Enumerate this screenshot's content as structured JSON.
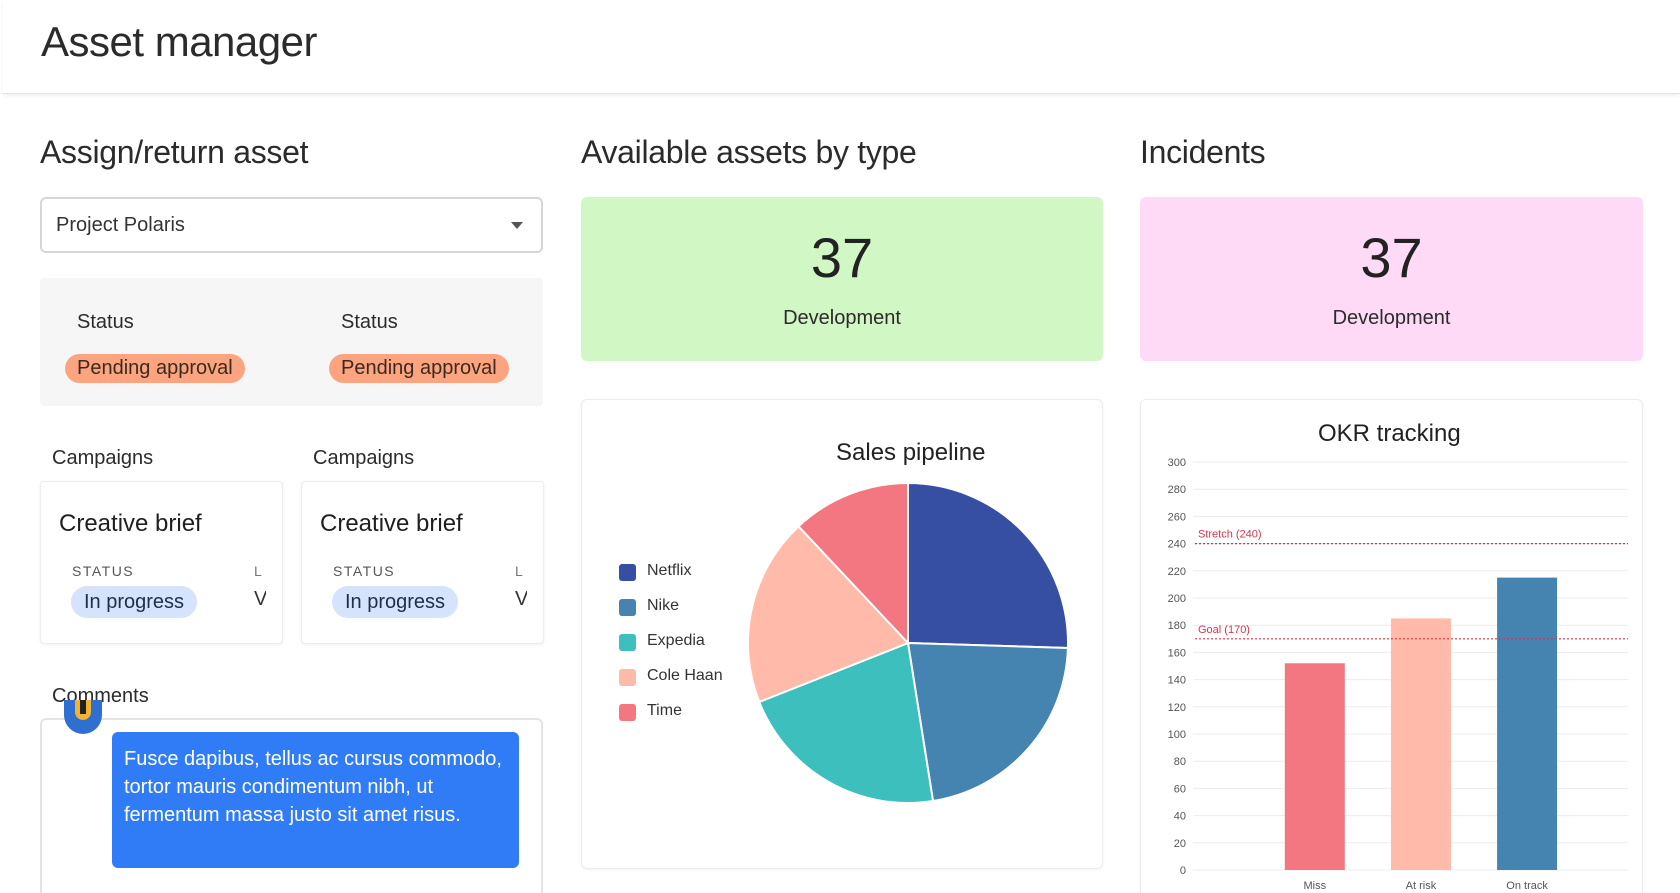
{
  "app": {
    "title": "Asset manager"
  },
  "assign": {
    "title": "Assign/return asset",
    "project_select": {
      "value": "Project Polaris"
    },
    "statuses": [
      {
        "label": "Status",
        "value": "Pending approval"
      },
      {
        "label": "Status",
        "value": "Pending approval"
      }
    ],
    "campaigns": [
      {
        "heading": "Campaigns",
        "card_title": "Creative brief",
        "status_label": "STATUS",
        "status_value": "In progress",
        "second_label": "L",
        "second_value": "V"
      },
      {
        "heading": "Campaigns",
        "card_title": "Creative brief",
        "status_label": "STATUS",
        "status_value": "In progress",
        "second_label": "L",
        "second_value": "V"
      }
    ],
    "comments": {
      "heading": "Comments",
      "message": "Fusce dapibus, tellus ac cursus commodo, tortor mauris condimentum nibh, ut fermentum massa justo sit amet risus."
    }
  },
  "available": {
    "title": "Available assets by type",
    "stat": {
      "value": "37",
      "label": "Development",
      "color": "#d1f7c4"
    }
  },
  "incidents": {
    "title": "Incidents",
    "stat": {
      "value": "37",
      "label": "Development",
      "color": "#ffdaf6"
    }
  },
  "chart_data": [
    {
      "type": "pie",
      "title": "Sales pipeline",
      "legend_position": "left",
      "categories": [
        "Netflix",
        "Nike",
        "Expedia",
        "Cole Haan",
        "Time"
      ],
      "values": [
        25.5,
        22,
        21.5,
        19,
        12
      ],
      "colors": [
        "#364fa2",
        "#4584b1",
        "#3dbfbe",
        "#ffbaa9",
        "#f27780"
      ]
    },
    {
      "type": "bar",
      "title": "OKR tracking",
      "categories": [
        "Miss",
        "At risk",
        "On track"
      ],
      "values": [
        152,
        185,
        215
      ],
      "colors": [
        "#f27780",
        "#ffbaa9",
        "#4584b1"
      ],
      "ylim": [
        0,
        300
      ],
      "yticks": [
        0,
        20,
        40,
        60,
        80,
        100,
        120,
        140,
        160,
        180,
        200,
        220,
        240,
        260,
        280,
        300
      ],
      "grid": true,
      "reference_lines": [
        {
          "label": "Stretch (240)",
          "value": 240,
          "color": "#d9344e"
        },
        {
          "label": "Goal (170)",
          "value": 170,
          "color": "#d9344e"
        }
      ]
    }
  ]
}
